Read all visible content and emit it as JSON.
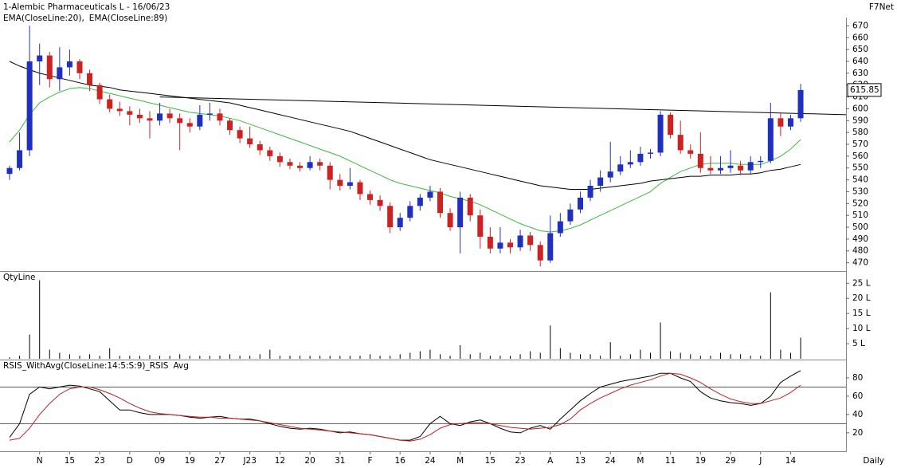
{
  "chart_data": [
    {
      "type": "candlestick",
      "title": "1-Alembic Pharmaceuticals L - 16/06/23",
      "source": "F7Net",
      "ylim": [
        463,
        675
      ],
      "yticks": [
        470,
        480,
        490,
        500,
        510,
        520,
        530,
        540,
        550,
        560,
        570,
        580,
        590,
        600,
        610,
        620,
        630,
        640,
        650,
        660,
        670
      ],
      "up_color": "#1f2fbf",
      "down_color": "#cc2222",
      "ohlc": [
        [
          545,
          552,
          540,
          550
        ],
        [
          550,
          580,
          548,
          565
        ],
        [
          565,
          670,
          560,
          640
        ],
        [
          640,
          655,
          620,
          645
        ],
        [
          645,
          648,
          618,
          625
        ],
        [
          625,
          652,
          615,
          635
        ],
        [
          635,
          650,
          628,
          640
        ],
        [
          640,
          642,
          625,
          630
        ],
        [
          630,
          633,
          615,
          620
        ],
        [
          620,
          622,
          604,
          608
        ],
        [
          608,
          612,
          597,
          600
        ],
        [
          600,
          606,
          594,
          598
        ],
        [
          598,
          602,
          586,
          595
        ],
        [
          595,
          600,
          588,
          592
        ],
        [
          592,
          598,
          575,
          590
        ],
        [
          590,
          605,
          586,
          596
        ],
        [
          596,
          600,
          588,
          592
        ],
        [
          592,
          596,
          565,
          588
        ],
        [
          588,
          592,
          580,
          585
        ],
        [
          585,
          603,
          582,
          595
        ],
        [
          595,
          605,
          590,
          596
        ],
        [
          596,
          600,
          586,
          590
        ],
        [
          590,
          592,
          578,
          582
        ],
        [
          582,
          585,
          571,
          575
        ],
        [
          575,
          585,
          567,
          570
        ],
        [
          570,
          573,
          561,
          565
        ],
        [
          565,
          568,
          556,
          560
        ],
        [
          560,
          563,
          551,
          555
        ],
        [
          555,
          558,
          549,
          552
        ],
        [
          552,
          555,
          547,
          550
        ],
        [
          550,
          560,
          548,
          555
        ],
        [
          555,
          558,
          548,
          552
        ],
        [
          552,
          555,
          532,
          540
        ],
        [
          540,
          545,
          531,
          535
        ],
        [
          535,
          550,
          532,
          538
        ],
        [
          538,
          540,
          523,
          528
        ],
        [
          528,
          531,
          519,
          523
        ],
        [
          523,
          527,
          514,
          518
        ],
        [
          518,
          521,
          495,
          500
        ],
        [
          500,
          512,
          497,
          508
        ],
        [
          508,
          522,
          505,
          518
        ],
        [
          518,
          528,
          514,
          525
        ],
        [
          525,
          535,
          522,
          530
        ],
        [
          530,
          533,
          508,
          512
        ],
        [
          512,
          516,
          497,
          500
        ],
        [
          500,
          530,
          478,
          525
        ],
        [
          525,
          528,
          505,
          510
        ],
        [
          510,
          515,
          482,
          492
        ],
        [
          492,
          500,
          478,
          482
        ],
        [
          482,
          500,
          478,
          487
        ],
        [
          487,
          490,
          478,
          483
        ],
        [
          483,
          498,
          480,
          493
        ],
        [
          493,
          496,
          480,
          485
        ],
        [
          485,
          488,
          467,
          472
        ],
        [
          472,
          510,
          470,
          495
        ],
        [
          495,
          512,
          492,
          505
        ],
        [
          505,
          520,
          502,
          515
        ],
        [
          515,
          530,
          512,
          525
        ],
        [
          525,
          540,
          522,
          535
        ],
        [
          535,
          548,
          530,
          542
        ],
        [
          542,
          572,
          538,
          547
        ],
        [
          547,
          560,
          544,
          553
        ],
        [
          553,
          565,
          550,
          555
        ],
        [
          555,
          568,
          552,
          562
        ],
        [
          562,
          566,
          558,
          563
        ],
        [
          563,
          598,
          560,
          595
        ],
        [
          595,
          597,
          575,
          578
        ],
        [
          578,
          590,
          562,
          565
        ],
        [
          565,
          570,
          558,
          562
        ],
        [
          562,
          580,
          546,
          550
        ],
        [
          550,
          560,
          545,
          548
        ],
        [
          548,
          560,
          545,
          550
        ],
        [
          550,
          565,
          546,
          552
        ],
        [
          552,
          556,
          544,
          548
        ],
        [
          548,
          560,
          545,
          555
        ],
        [
          555,
          560,
          550,
          556
        ],
        [
          556,
          605,
          554,
          592
        ],
        [
          592,
          596,
          577,
          585
        ],
        [
          585,
          595,
          582,
          592
        ],
        [
          592,
          621,
          589,
          615.85
        ]
      ],
      "series": [
        {
          "name": "EMA(CloseLine:20),",
          "color": "#3cb93c",
          "values": [
            572,
            582,
            595,
            605,
            610,
            614,
            617,
            618,
            617,
            615,
            613,
            611,
            609,
            607,
            605,
            603,
            601,
            599,
            597,
            596,
            595,
            594,
            592,
            590,
            587,
            584,
            581,
            578,
            575,
            572,
            569,
            566,
            563,
            560,
            556,
            552,
            548,
            544,
            540,
            537,
            535,
            533,
            531,
            529,
            526,
            524,
            522,
            519,
            515,
            511,
            507,
            503,
            500,
            497,
            496,
            497,
            499,
            502,
            506,
            510,
            514,
            518,
            522,
            526,
            530,
            537,
            542,
            547,
            550,
            553,
            554,
            554,
            554,
            553,
            553,
            553,
            556,
            560,
            566,
            574
          ]
        },
        {
          "name": "EMA(CloseLine:89)",
          "color": "#000000",
          "values": [
            640,
            636,
            633,
            630,
            628,
            626,
            624,
            622,
            620,
            619,
            618,
            616,
            615,
            614,
            613,
            612,
            611,
            610,
            609,
            608,
            607,
            606,
            605,
            603,
            601,
            599,
            597,
            595,
            593,
            591,
            589,
            587,
            585,
            583,
            581,
            578,
            575,
            572,
            569,
            566,
            563,
            560,
            557,
            555,
            553,
            551,
            549,
            547,
            545,
            543,
            541,
            539,
            537,
            535,
            534,
            533,
            532,
            532,
            532,
            533,
            534,
            535,
            536,
            537,
            539,
            540,
            541,
            542,
            543,
            543,
            544,
            544,
            544,
            545,
            545,
            546,
            548,
            549,
            551,
            553
          ]
        }
      ],
      "trendline": [
        610,
        595
      ]
    },
    {
      "type": "bar",
      "title": "QtyLine",
      "color": "#000000",
      "ylim": [
        0,
        28.5
      ],
      "yticks": [
        {
          "value": 5,
          "label": "5 L"
        },
        {
          "value": 10,
          "label": "10 L"
        },
        {
          "value": 15,
          "label": "15 L"
        },
        {
          "value": 20,
          "label": "20 L"
        },
        {
          "value": 25,
          "label": "25 L"
        }
      ],
      "values": [
        0.5,
        1,
        8,
        26,
        3,
        2,
        1.5,
        1,
        1.5,
        1,
        3.5,
        1,
        1,
        1,
        1.2,
        1,
        1,
        1.5,
        1,
        1,
        1,
        1,
        1.5,
        1,
        1,
        1.5,
        3,
        1,
        1,
        1,
        1,
        1,
        1,
        1,
        1,
        1,
        1.5,
        1,
        1,
        1.5,
        2,
        2.5,
        3,
        1.5,
        1,
        4.5,
        1.5,
        2,
        1,
        1,
        1,
        1.5,
        2.5,
        2,
        11,
        3.5,
        2,
        1.5,
        1.5,
        1,
        5.5,
        1,
        1.5,
        3,
        2,
        12,
        2.5,
        2,
        1.5,
        1,
        1,
        2,
        1.5,
        1.5,
        1,
        1,
        22,
        3,
        2,
        7
      ]
    },
    {
      "type": "line",
      "title": "RSIS_WithAvg(CloseLine:14:5:S:9)_RSIS",
      "ylim": [
        -1,
        96.5
      ],
      "yticks": [
        20,
        40,
        60,
        80
      ],
      "hlines": [
        30,
        70
      ],
      "x_label": "Daily",
      "categories": [
        null,
        null,
        null,
        "N",
        null,
        null,
        "15",
        null,
        null,
        "23",
        null,
        null,
        "D",
        null,
        null,
        "09",
        null,
        null,
        "19",
        null,
        null,
        "27",
        null,
        null,
        "J23",
        null,
        null,
        "12",
        null,
        null,
        "20",
        null,
        null,
        "31",
        null,
        null,
        "F",
        null,
        null,
        "16",
        null,
        null,
        "24",
        null,
        null,
        "M",
        null,
        null,
        "15",
        null,
        null,
        "23",
        null,
        null,
        "A",
        null,
        null,
        "13",
        null,
        null,
        "24",
        null,
        null,
        "M",
        null,
        null,
        "11",
        null,
        null,
        "19",
        null,
        null,
        "29",
        null,
        null,
        "J",
        null,
        null,
        "14",
        null
      ],
      "series": [
        {
          "color": "#000000",
          "values": [
            15,
            30,
            62,
            70,
            68,
            70,
            72,
            71,
            68,
            65,
            55,
            45,
            45,
            42,
            40,
            40,
            40,
            39,
            37,
            36,
            37,
            38,
            36,
            35,
            35,
            33,
            30,
            27,
            25,
            24,
            25,
            24,
            22,
            20,
            21,
            19,
            18,
            16,
            14,
            12,
            12,
            16,
            30,
            38,
            30,
            28,
            32,
            34,
            30,
            25,
            21,
            20,
            25,
            28,
            24,
            35,
            45,
            55,
            63,
            70,
            73,
            76,
            78,
            80,
            82,
            85,
            85,
            80,
            76,
            65,
            58,
            55,
            53,
            52,
            50,
            52,
            60,
            75,
            82,
            88
          ]
        },
        {
          "name": "Avg",
          "color": "#c02020",
          "values": [
            12,
            14,
            25,
            40,
            52,
            62,
            68,
            70,
            70,
            67,
            63,
            58,
            52,
            47,
            43,
            41,
            40,
            39,
            38,
            37,
            37,
            36,
            36,
            35,
            34,
            33,
            31,
            29,
            27,
            25,
            24,
            23,
            22,
            21,
            20,
            19,
            18,
            16,
            14,
            12,
            11,
            13,
            18,
            25,
            29,
            30,
            31,
            31,
            30,
            28,
            26,
            25,
            24,
            25,
            26,
            29,
            35,
            45,
            52,
            58,
            63,
            68,
            72,
            75,
            78,
            82,
            85,
            84,
            80,
            75,
            68,
            62,
            57,
            54,
            52,
            52,
            55,
            58,
            64,
            72
          ]
        }
      ]
    }
  ]
}
